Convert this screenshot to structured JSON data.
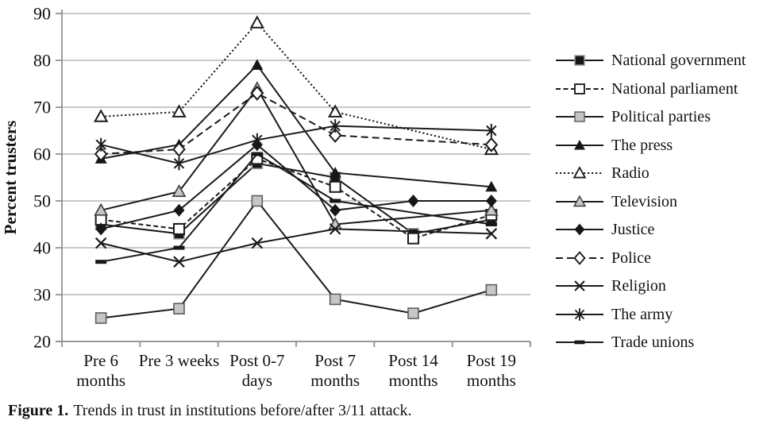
{
  "figure": {
    "caption_label": "Figure 1.",
    "caption_text": "Trends in trust in institutions before/after 3/11 attack."
  },
  "chart_data": {
    "type": "line",
    "title": "",
    "xlabel": "",
    "ylabel": "Percent trusters",
    "ylim": [
      20,
      90
    ],
    "ytick_step": 10,
    "grid": "horizontal",
    "legend_position": "right",
    "categories": [
      "Pre 6 months",
      "Pre 3 weeks",
      "Post 0-7 days",
      "Post 7 months",
      "Post 14 months",
      "Post 19 months"
    ],
    "category_label_lines": [
      [
        "Pre 6",
        "months"
      ],
      [
        "Pre 3 weeks"
      ],
      [
        "Post 0-7",
        "days"
      ],
      [
        "Post 7",
        "months"
      ],
      [
        "Post 14",
        "months"
      ],
      [
        "Post 19",
        "months"
      ]
    ],
    "yticks": [
      20,
      30,
      40,
      50,
      60,
      70,
      80,
      90
    ],
    "series": [
      {
        "name": "National government",
        "marker": "square-filled",
        "line": "solid",
        "values": [
          45,
          43,
          58,
          55,
          43,
          46
        ]
      },
      {
        "name": "National parliament",
        "marker": "square-open",
        "line": "dashed",
        "values": [
          46,
          44,
          59,
          53,
          42,
          47
        ]
      },
      {
        "name": "Political parties",
        "marker": "square-gray",
        "line": "solid",
        "values": [
          25,
          27,
          50,
          29,
          26,
          31
        ]
      },
      {
        "name": "The press",
        "marker": "triangle-filled",
        "line": "solid",
        "values": [
          59,
          62,
          79,
          56,
          null,
          53
        ]
      },
      {
        "name": "Radio",
        "marker": "triangle-open",
        "line": "dotted",
        "values": [
          68,
          69,
          88,
          69,
          null,
          61
        ]
      },
      {
        "name": "Television",
        "marker": "triangle-gray",
        "line": "solid",
        "values": [
          48,
          52,
          74,
          45,
          null,
          48
        ]
      },
      {
        "name": "Justice",
        "marker": "diamond-filled",
        "line": "solid",
        "values": [
          44,
          48,
          62,
          48,
          50,
          50
        ]
      },
      {
        "name": "Police",
        "marker": "diamond-open",
        "line": "dashed-long",
        "values": [
          60,
          61,
          73,
          64,
          null,
          62
        ]
      },
      {
        "name": "Religion",
        "marker": "x",
        "line": "solid",
        "values": [
          41,
          37,
          41,
          44,
          null,
          43
        ]
      },
      {
        "name": "The army",
        "marker": "asterisk",
        "line": "solid",
        "values": [
          62,
          58,
          63,
          66,
          null,
          65
        ]
      },
      {
        "name": "Trade unions",
        "marker": "dash",
        "line": "solid",
        "values": [
          37,
          40,
          60,
          50,
          null,
          45
        ]
      }
    ],
    "colors": {
      "line": "#1a1a1a",
      "dark_fill": "#171717",
      "gray_fill": "#c6c6c6",
      "white_fill": "#ffffff",
      "grid": "#a8a8a8",
      "axis": "#8c8c8c",
      "text": "#111111"
    }
  }
}
